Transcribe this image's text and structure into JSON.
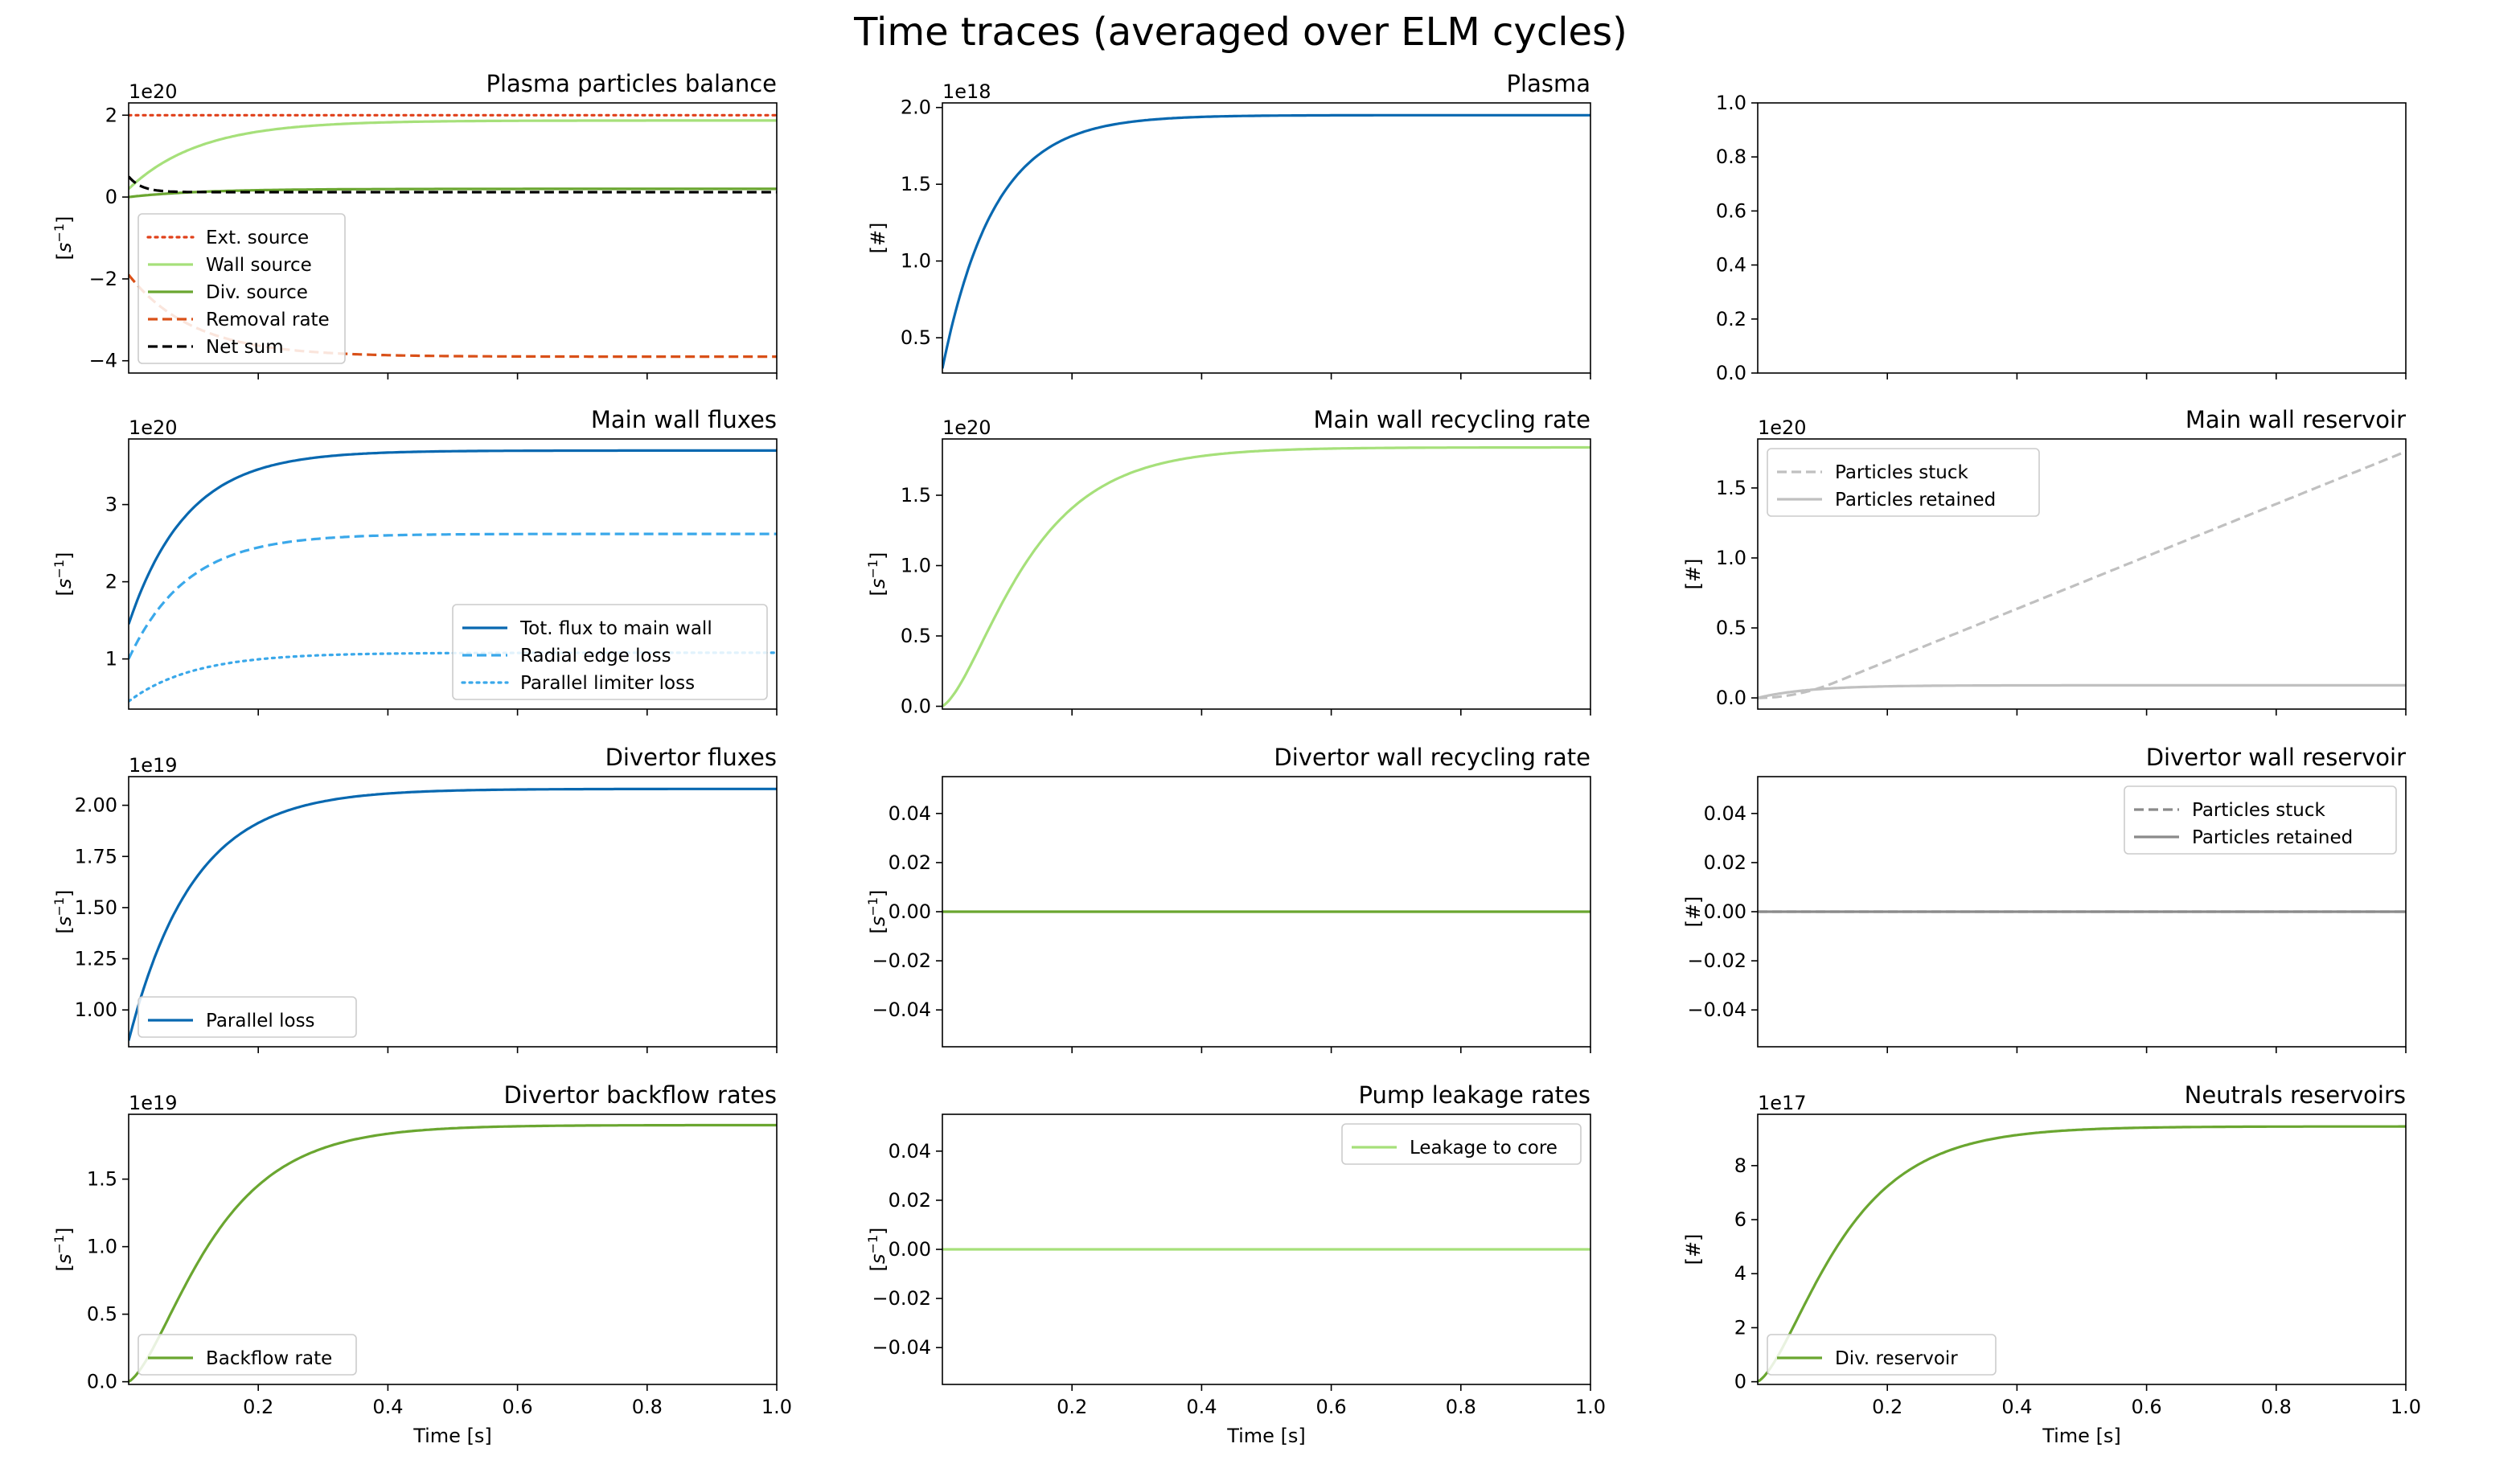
{
  "figure": {
    "suptitle": "Time traces (averaged over ELM cycles)"
  },
  "colors": {
    "dark_blue": "#0868b0",
    "light_blue": "#3aa8ea",
    "light_green": "#a6e07a",
    "green": "#6aa630",
    "red_dotted": "#e0401a",
    "orange": "#d95018",
    "black": "#000000",
    "light_gray": "#c0c0c0",
    "gray": "#8a8a8a"
  },
  "chart_data": [
    {
      "type": "line",
      "title": "Plasma particles balance",
      "ylabel": "[s^-1]",
      "xlim": [
        0,
        1.0
      ],
      "ylim": [
        -4.3,
        2.3
      ],
      "yticks": [
        -4,
        -2,
        0,
        2
      ],
      "ytick_labels": [
        "−4",
        "−2",
        "0",
        "2"
      ],
      "offset_text": "1e20",
      "xticks": [
        0.2,
        0.4,
        0.6,
        0.8,
        1.0
      ],
      "show_xticklabels": false,
      "legend": "lower-left",
      "series": [
        {
          "name": "Ext. source",
          "kind": "const",
          "value": 2.0,
          "color": "red_dotted",
          "style": "dotted"
        },
        {
          "name": "Wall source",
          "kind": "saturate",
          "v0": 0.2,
          "vinf": 1.87,
          "tau": 0.11,
          "color": "light_green",
          "style": "solid"
        },
        {
          "name": "Div. source",
          "kind": "saturate",
          "v0": 0.0,
          "vinf": 0.2,
          "tau": 0.11,
          "color": "green",
          "style": "solid"
        },
        {
          "name": "Removal rate",
          "kind": "saturate",
          "v0": -1.9,
          "vinf": -3.9,
          "tau": 0.1,
          "color": "orange",
          "style": "dashed"
        },
        {
          "name": "Net sum",
          "kind": "decay",
          "v0": 0.5,
          "vinf": 0.12,
          "tau": 0.02,
          "color": "black",
          "style": "dashed"
        }
      ]
    },
    {
      "type": "line",
      "title": "Plasma",
      "ylabel": "[#]",
      "xlim": [
        0,
        1.0
      ],
      "ylim": [
        0.27,
        2.03
      ],
      "yticks": [
        0.5,
        1.0,
        1.5,
        2.0
      ],
      "ytick_labels": [
        "0.5",
        "1.0",
        "1.5",
        "2.0"
      ],
      "offset_text": "1e18",
      "xticks": [
        0.2,
        0.4,
        0.6,
        0.8,
        1.0
      ],
      "show_xticklabels": false,
      "legend": "none",
      "series": [
        {
          "kind": "saturate",
          "v0": 0.3,
          "vinf": 1.95,
          "tau": 0.08,
          "color": "dark_blue",
          "style": "solid"
        }
      ]
    },
    {
      "type": "line",
      "title": "",
      "ylabel": "",
      "xlim": [
        0,
        1.0
      ],
      "ylim": [
        0.0,
        1.0
      ],
      "yticks": [
        0.0,
        0.2,
        0.4,
        0.6,
        0.8,
        1.0
      ],
      "ytick_labels": [
        "0.0",
        "0.2",
        "0.4",
        "0.6",
        "0.8",
        "1.0"
      ],
      "offset_text": "",
      "xticks": [
        0.2,
        0.4,
        0.6,
        0.8,
        1.0
      ],
      "show_xticklabels": false,
      "legend": "none",
      "series": []
    },
    {
      "type": "line",
      "title": "Main wall fluxes",
      "ylabel": "[s^-1]",
      "xlim": [
        0,
        1.0
      ],
      "ylim": [
        0.35,
        3.85
      ],
      "yticks": [
        1,
        2,
        3
      ],
      "ytick_labels": [
        "1",
        "2",
        "3"
      ],
      "offset_text": "1e20",
      "xticks": [
        0.2,
        0.4,
        0.6,
        0.8,
        1.0
      ],
      "show_xticklabels": false,
      "legend": "lower-right",
      "series": [
        {
          "name": "Tot. flux to main wall",
          "kind": "saturate",
          "v0": 1.45,
          "vinf": 3.7,
          "tau": 0.09,
          "color": "dark_blue",
          "style": "solid"
        },
        {
          "name": "Radial edge loss",
          "kind": "saturate",
          "v0": 1.0,
          "vinf": 2.62,
          "tau": 0.09,
          "color": "light_blue",
          "style": "dashed"
        },
        {
          "name": "Parallel limiter loss",
          "kind": "saturate",
          "v0": 0.45,
          "vinf": 1.08,
          "tau": 0.1,
          "color": "light_blue",
          "style": "dotted"
        }
      ]
    },
    {
      "type": "line",
      "title": "Main wall recycling rate",
      "ylabel": "[s^-1]",
      "xlim": [
        0,
        1.0
      ],
      "ylim": [
        -0.02,
        1.9
      ],
      "yticks": [
        0.0,
        0.5,
        1.0,
        1.5
      ],
      "ytick_labels": [
        "0.0",
        "0.5",
        "1.0",
        "1.5"
      ],
      "offset_text": "1e20",
      "xticks": [
        0.2,
        0.4,
        0.6,
        0.8,
        1.0
      ],
      "show_xticklabels": false,
      "legend": "none",
      "series": [
        {
          "kind": "sigmoid",
          "v0": 0.0,
          "vinf": 1.84,
          "tau": 0.1,
          "color": "light_green",
          "style": "solid"
        }
      ]
    },
    {
      "type": "line",
      "title": "Main wall reservoir",
      "ylabel": "[#]",
      "xlim": [
        0,
        1.0
      ],
      "ylim": [
        -0.08,
        1.85
      ],
      "yticks": [
        0.0,
        0.5,
        1.0,
        1.5
      ],
      "ytick_labels": [
        "0.0",
        "0.5",
        "1.0",
        "1.5"
      ],
      "offset_text": "1e20",
      "xticks": [
        0.2,
        0.4,
        0.6,
        0.8,
        1.0
      ],
      "show_xticklabels": false,
      "legend": "upper-left",
      "series": [
        {
          "name": "Particles stuck",
          "kind": "ramp",
          "v0": 0.0,
          "vinf": 1.76,
          "color": "light_gray",
          "style": "dashed"
        },
        {
          "name": "Particles retained",
          "kind": "saturate",
          "v0": 0.0,
          "vinf": 0.09,
          "tau": 0.08,
          "color": "light_gray",
          "style": "solid"
        }
      ]
    },
    {
      "type": "line",
      "title": "Divertor fluxes",
      "ylabel": "[s^-1]",
      "xlim": [
        0,
        1.0
      ],
      "ylim": [
        0.82,
        2.14
      ],
      "yticks": [
        1.0,
        1.25,
        1.5,
        1.75,
        2.0
      ],
      "ytick_labels": [
        "1.00",
        "1.25",
        "1.50",
        "1.75",
        "2.00"
      ],
      "offset_text": "1e19",
      "xticks": [
        0.2,
        0.4,
        0.6,
        0.8,
        1.0
      ],
      "show_xticklabels": false,
      "legend": "lower-left",
      "series": [
        {
          "name": "Parallel loss",
          "kind": "saturate",
          "v0": 0.85,
          "vinf": 2.08,
          "tau": 0.1,
          "color": "dark_blue",
          "style": "solid"
        }
      ]
    },
    {
      "type": "line",
      "title": "Divertor wall recycling rate",
      "ylabel": "[s^-1]",
      "xlim": [
        0,
        1.0
      ],
      "ylim": [
        -0.055,
        0.055
      ],
      "yticks": [
        -0.04,
        -0.02,
        0.0,
        0.02,
        0.04
      ],
      "ytick_labels": [
        "−0.04",
        "−0.02",
        "0.00",
        "0.02",
        "0.04"
      ],
      "offset_text": "",
      "xticks": [
        0.2,
        0.4,
        0.6,
        0.8,
        1.0
      ],
      "show_xticklabels": false,
      "legend": "none",
      "series": [
        {
          "kind": "const",
          "value": 0.0,
          "color": "green",
          "style": "solid"
        }
      ]
    },
    {
      "type": "line",
      "title": "Divertor wall reservoir",
      "ylabel": "[#]",
      "xlim": [
        0,
        1.0
      ],
      "ylim": [
        -0.055,
        0.055
      ],
      "yticks": [
        -0.04,
        -0.02,
        0.0,
        0.02,
        0.04
      ],
      "ytick_labels": [
        "−0.04",
        "−0.02",
        "0.00",
        "0.02",
        "0.04"
      ],
      "offset_text": "",
      "xticks": [
        0.2,
        0.4,
        0.6,
        0.8,
        1.0
      ],
      "show_xticklabels": false,
      "legend": "upper-right",
      "series": [
        {
          "name": "Particles stuck",
          "kind": "const",
          "value": 0.0,
          "color": "gray",
          "style": "dashed"
        },
        {
          "name": "Particles retained",
          "kind": "const",
          "value": 0.0,
          "color": "gray",
          "style": "solid"
        }
      ]
    },
    {
      "type": "line",
      "title": "Divertor backflow rates",
      "ylabel": "[s^-1]",
      "xlim": [
        0,
        1.0
      ],
      "ylim": [
        -0.02,
        1.98
      ],
      "yticks": [
        0.0,
        0.5,
        1.0,
        1.5
      ],
      "ytick_labels": [
        "0.0",
        "0.5",
        "1.0",
        "1.5"
      ],
      "offset_text": "1e19",
      "xticks": [
        0.2,
        0.4,
        0.6,
        0.8,
        1.0
      ],
      "xtick_labels": [
        "0.2",
        "0.4",
        "0.6",
        "0.8",
        "1.0"
      ],
      "show_xticklabels": true,
      "xlabel": "Time [s]",
      "legend": "lower-left",
      "series": [
        {
          "name": "Backflow rate",
          "kind": "sigmoid",
          "v0": 0.0,
          "vinf": 1.9,
          "tau": 0.1,
          "color": "green",
          "style": "solid"
        }
      ]
    },
    {
      "type": "line",
      "title": "Pump leakage rates",
      "ylabel": "[s^-1]",
      "xlim": [
        0,
        1.0
      ],
      "ylim": [
        -0.055,
        0.055
      ],
      "yticks": [
        -0.04,
        -0.02,
        0.0,
        0.02,
        0.04
      ],
      "ytick_labels": [
        "−0.04",
        "−0.02",
        "0.00",
        "0.02",
        "0.04"
      ],
      "offset_text": "",
      "xticks": [
        0.2,
        0.4,
        0.6,
        0.8,
        1.0
      ],
      "xtick_labels": [
        "0.2",
        "0.4",
        "0.6",
        "0.8",
        "1.0"
      ],
      "show_xticklabels": true,
      "xlabel": "Time [s]",
      "legend": "upper-right",
      "series": [
        {
          "name": "Leakage to core",
          "kind": "const",
          "value": 0.0,
          "color": "light_green",
          "style": "solid"
        }
      ]
    },
    {
      "type": "line",
      "title": "Neutrals reservoirs",
      "ylabel": "[#]",
      "xlim": [
        0,
        1.0
      ],
      "ylim": [
        -0.1,
        9.9
      ],
      "yticks": [
        0,
        2,
        4,
        6,
        8
      ],
      "ytick_labels": [
        "0",
        "2",
        "4",
        "6",
        "8"
      ],
      "offset_text": "1e17",
      "xticks": [
        0.2,
        0.4,
        0.6,
        0.8,
        1.0
      ],
      "xtick_labels": [
        "0.2",
        "0.4",
        "0.6",
        "0.8",
        "1.0"
      ],
      "show_xticklabels": true,
      "xlabel": "Time [s]",
      "legend": "lower-left",
      "series": [
        {
          "name": "Div. reservoir",
          "kind": "sigmoid",
          "v0": 0.0,
          "vinf": 9.45,
          "tau": 0.1,
          "color": "green",
          "style": "solid"
        }
      ]
    }
  ]
}
